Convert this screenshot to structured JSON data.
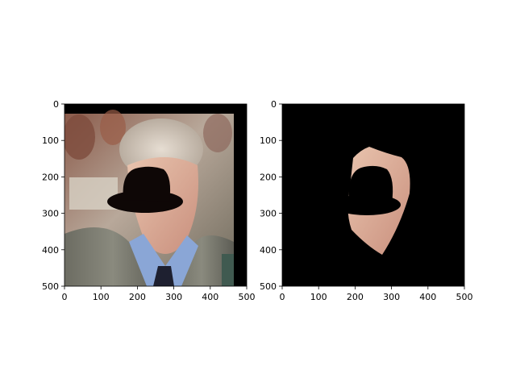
{
  "figure": {
    "background": "#ffffff"
  },
  "chart_data": [
    {
      "type": "image",
      "title": "",
      "xlabel": "",
      "ylabel": "",
      "xlim": [
        0,
        500
      ],
      "ylim": [
        500,
        0
      ],
      "xticks": [
        0,
        100,
        200,
        300,
        400,
        500
      ],
      "yticks": [
        0,
        100,
        200,
        300,
        400,
        500
      ],
      "grid": false,
      "content": "photo-with-face-occluded-by-black-bowler-hat"
    },
    {
      "type": "image",
      "title": "",
      "xlabel": "",
      "ylabel": "",
      "xlim": [
        0,
        500
      ],
      "ylim": [
        500,
        0
      ],
      "xticks": [
        0,
        100,
        200,
        300,
        400,
        500
      ],
      "yticks": [
        0,
        100,
        200,
        300,
        400,
        500
      ],
      "grid": false,
      "content": "segmented-face-region-on-black-background"
    }
  ]
}
